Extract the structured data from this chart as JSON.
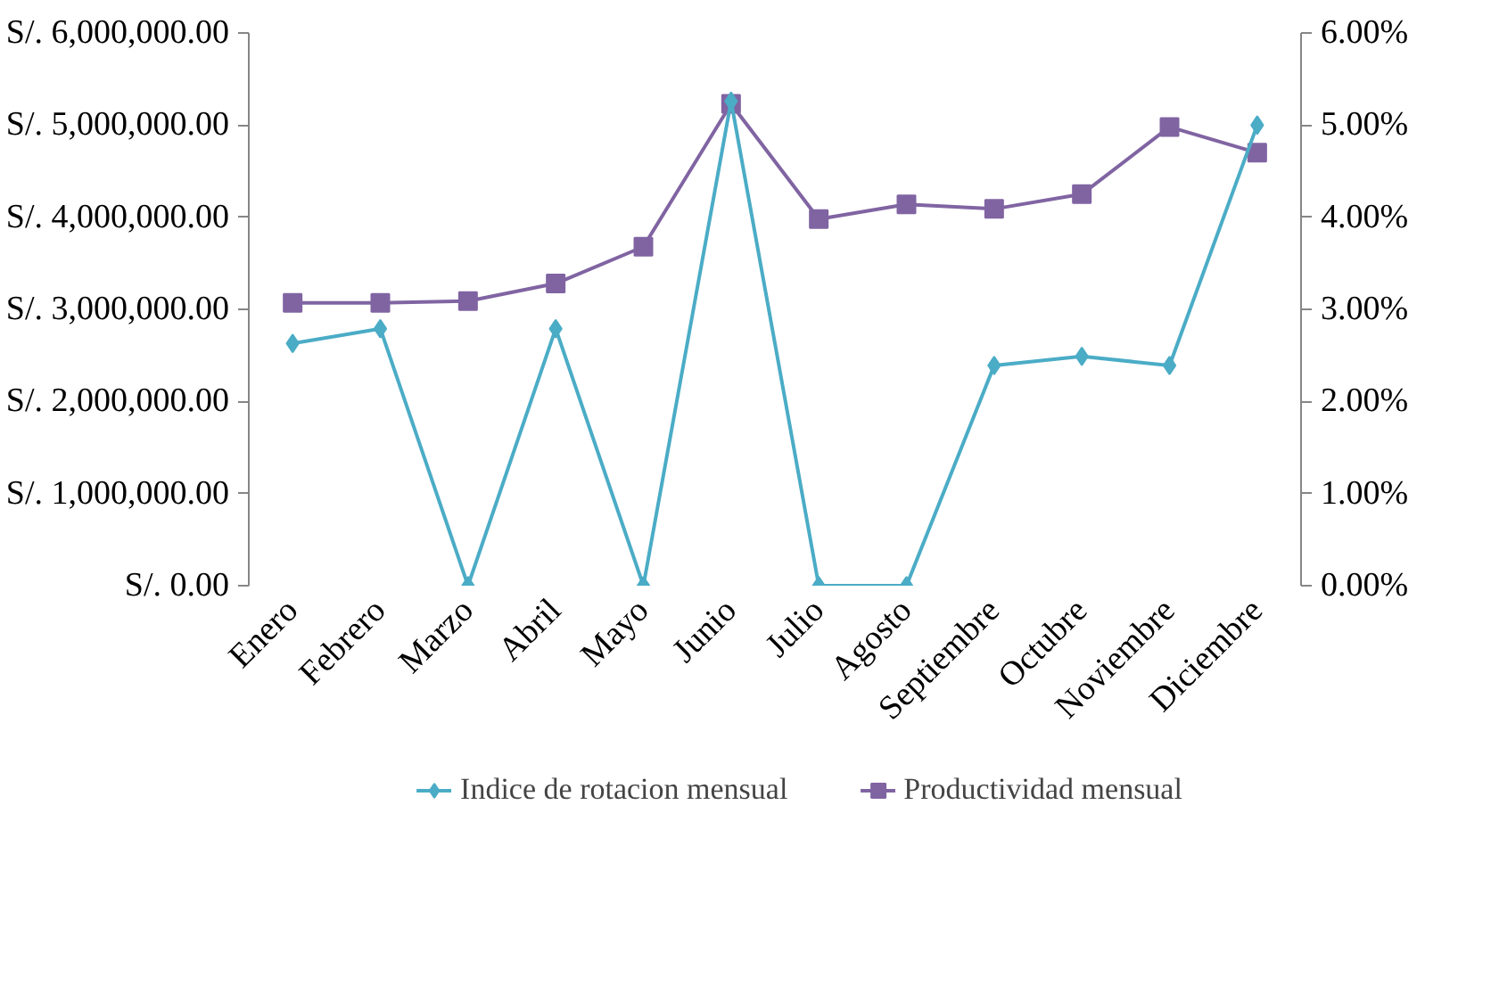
{
  "chart_data": {
    "type": "line",
    "categories": [
      "Enero",
      "Febrero",
      "Marzo",
      "Abril",
      "Mayo",
      "Junio",
      "Julio",
      "Agosto",
      "Septiembre",
      "Octubre",
      "Noviembre",
      "Diciembre"
    ],
    "series": [
      {
        "name": "Indice de rotacion mensual",
        "color": "#4bacc6",
        "axis": "y2",
        "marker": "diamond",
        "values": [
          2.63,
          2.79,
          0,
          2.79,
          0,
          5.26,
          0,
          0,
          2.39,
          2.49,
          2.39,
          5.0
        ]
      },
      {
        "name": "Productividad mensual",
        "color": "#8064a2",
        "marker": "square",
        "values": [
          3070000,
          3070000,
          3090000,
          3280000,
          3680000,
          5230000,
          3980000,
          4140000,
          4090000,
          4250000,
          4980000,
          4700000
        ]
      }
    ],
    "ylim": [
      0,
      6000000
    ],
    "yticks": [
      {
        "value": 0,
        "label": "S/. 0.00"
      },
      {
        "value": 1000000,
        "label": "S/. 1,000,000.00"
      },
      {
        "value": 2000000,
        "label": "S/. 2,000,000.00"
      },
      {
        "value": 3000000,
        "label": "S/. 3,000,000.00"
      },
      {
        "value": 4000000,
        "label": "S/. 4,000,000.00"
      },
      {
        "value": 5000000,
        "label": "S/. 5,000,000.00"
      },
      {
        "value": 6000000,
        "label": "S/. 6,000,000.00"
      }
    ],
    "y2lim": [
      0,
      6
    ],
    "y2ticks": [
      {
        "value": 0,
        "label": "0.00%"
      },
      {
        "value": 1,
        "label": "1.00%"
      },
      {
        "value": 2,
        "label": "2.00%"
      },
      {
        "value": 3,
        "label": "3.00%"
      },
      {
        "value": 4,
        "label": "4.00%"
      },
      {
        "value": 5,
        "label": "5.00%"
      },
      {
        "value": 6,
        "label": "6.00%"
      }
    ],
    "grid": false,
    "legend": "bottom",
    "line_style": "solid"
  }
}
